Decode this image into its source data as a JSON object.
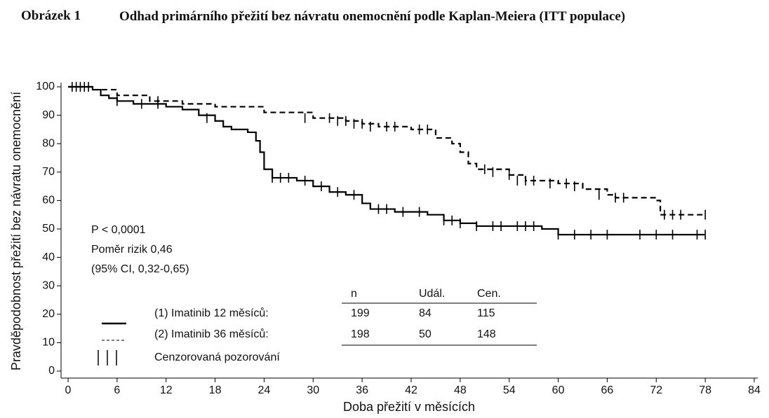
{
  "chart_data": {
    "type": "step",
    "figure_label": "Obrázek 1",
    "title": "Odhad primárního přežití bez návratu onemocnění podle Kaplan-Meiera (ITT populace)",
    "x_label": "Doba přežití v měsících",
    "y_label": "Pravděpodobnost přežití bez návratu onemocnění",
    "xlim": [
      0,
      84
    ],
    "xticks": [
      0,
      6,
      12,
      18,
      24,
      30,
      36,
      42,
      48,
      54,
      60,
      66,
      72,
      78,
      84
    ],
    "ylim": [
      0,
      100
    ],
    "yticks": [
      0,
      10,
      20,
      30,
      40,
      50,
      60,
      70,
      80,
      90,
      100
    ],
    "annotations": [
      "P < 0,0001",
      "Poměr rizik 0,46",
      "(95% CI, 0,32-0,65)"
    ],
    "legend_headers": [
      "n",
      "Udál.",
      "Cen."
    ],
    "censor_label": "Cenzorovaná pozorování",
    "series": [
      {
        "name": "(1) Imatinib 12 měsíců:",
        "color": "#000000",
        "style": "solid",
        "n": 199,
        "events": 84,
        "censored": 115,
        "x": [
          0,
          3,
          4,
          5,
          6,
          8,
          12,
          14,
          16,
          18,
          19,
          20,
          22,
          23,
          23.5,
          24,
          25,
          28,
          30,
          32,
          34,
          36,
          37,
          40,
          44,
          46,
          48,
          50,
          58,
          60,
          78
        ],
        "values": [
          100,
          99,
          97,
          96,
          95,
          94,
          93,
          92,
          90,
          88,
          86,
          85,
          84,
          81,
          77,
          71,
          68,
          67,
          65,
          63,
          62,
          59,
          57,
          56,
          55,
          53,
          52,
          51,
          50,
          48,
          48
        ],
        "censor_x": [
          1,
          2,
          6,
          9,
          11,
          17,
          25,
          26,
          27,
          29,
          31,
          33,
          35,
          38,
          39,
          41,
          43,
          46,
          47,
          48,
          50,
          52,
          53,
          55,
          56,
          57,
          60,
          62,
          64,
          66,
          70,
          72,
          74,
          77,
          78
        ],
        "censor_values": [
          100,
          100,
          95,
          94,
          94,
          89,
          68,
          68,
          68,
          67,
          65,
          63,
          62,
          57,
          57,
          56,
          56,
          53,
          53,
          52,
          51,
          51,
          51,
          51,
          51,
          51,
          48,
          48,
          48,
          48,
          48,
          48,
          48,
          48,
          48
        ]
      },
      {
        "name": "(2) Imatinib 36 měsíců:",
        "color": "#000000",
        "style": "dashed",
        "n": 198,
        "events": 50,
        "censored": 148,
        "x": [
          0,
          3,
          6,
          10,
          14,
          18,
          24,
          30,
          34,
          36,
          38,
          42,
          45,
          47,
          48,
          49,
          50,
          54,
          56,
          60,
          63,
          66,
          67,
          72,
          72.5,
          78
        ],
        "values": [
          100,
          99,
          97,
          95,
          94,
          93,
          91,
          89,
          88,
          87,
          86,
          85,
          82,
          80,
          77,
          73,
          71,
          69,
          67,
          66,
          64,
          62,
          61,
          60,
          55,
          55
        ],
        "censor_x": [
          0.5,
          1.5,
          2.5,
          11,
          29,
          32,
          33,
          34,
          35,
          36,
          37,
          39,
          40,
          43,
          44,
          51,
          52,
          54,
          55,
          56,
          57,
          59,
          61,
          62,
          65,
          67,
          68,
          73,
          74,
          75,
          78
        ],
        "censor_values": [
          100,
          100,
          100,
          95,
          89,
          89,
          88,
          88,
          87,
          87,
          86,
          86,
          86,
          85,
          85,
          71,
          70,
          69,
          67,
          67,
          67,
          66,
          66,
          65,
          62,
          61,
          61,
          55,
          55,
          55,
          55
        ]
      }
    ]
  }
}
